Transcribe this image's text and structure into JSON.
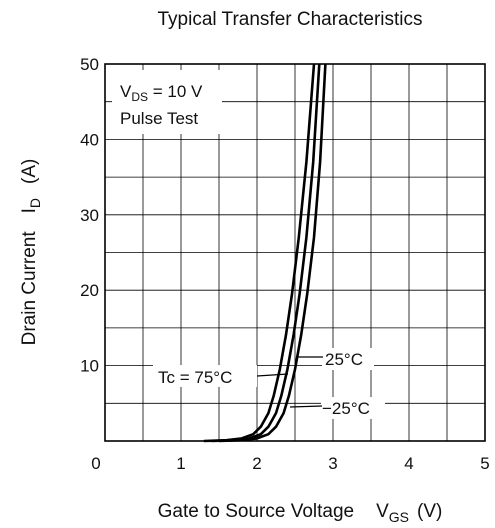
{
  "chart_data": {
    "type": "line",
    "title": "Typical Transfer Characteristics",
    "xlabel": {
      "text": "Gate to Source Voltage",
      "symbol": "V",
      "sub": "GS",
      "unit": "(V)"
    },
    "ylabel": {
      "text": "Drain Current",
      "symbol": "I",
      "sub": "D",
      "unit": "(A)"
    },
    "xlim": [
      0,
      5
    ],
    "ylim": [
      0,
      50
    ],
    "x_ticks": [
      "0",
      "1",
      "2",
      "3",
      "4",
      "5"
    ],
    "y_ticks": [
      "10",
      "20",
      "30",
      "40",
      "50"
    ],
    "grid": true,
    "conditions": [
      {
        "symbol": "V",
        "sub": "DS",
        "rest": " = 10 V"
      },
      {
        "symbol": "Pulse Test",
        "sub": "",
        "rest": ""
      }
    ],
    "series": [
      {
        "name": "Tc = 75°C",
        "x": [
          1.3,
          1.6,
          1.8,
          1.95,
          2.05,
          2.15,
          2.22,
          2.3,
          2.38,
          2.46,
          2.55,
          2.65,
          2.75
        ],
        "y": [
          0,
          0.1,
          0.35,
          0.9,
          1.9,
          3.7,
          6,
          9.5,
          14,
          19.5,
          27,
          37,
          50
        ]
      },
      {
        "name": "25°C",
        "x": [
          1.4,
          1.7,
          1.9,
          2.05,
          2.15,
          2.25,
          2.32,
          2.4,
          2.48,
          2.56,
          2.65,
          2.74,
          2.82
        ],
        "y": [
          0,
          0.1,
          0.35,
          0.9,
          1.9,
          3.7,
          6,
          9.5,
          14,
          19.5,
          27,
          37,
          50
        ]
      },
      {
        "name": "−25°C",
        "x": [
          1.5,
          1.8,
          2.0,
          2.15,
          2.25,
          2.35,
          2.42,
          2.5,
          2.58,
          2.66,
          2.75,
          2.83,
          2.9
        ],
        "y": [
          0,
          0.1,
          0.35,
          0.9,
          1.9,
          3.7,
          6,
          9.5,
          14,
          19.5,
          27,
          37,
          50
        ]
      }
    ],
    "annotations": [
      {
        "text": "Tc = 75°C",
        "series": 0
      },
      {
        "text": "25°C",
        "series": 1
      },
      {
        "text": "−25°C",
        "series": 2
      }
    ]
  }
}
